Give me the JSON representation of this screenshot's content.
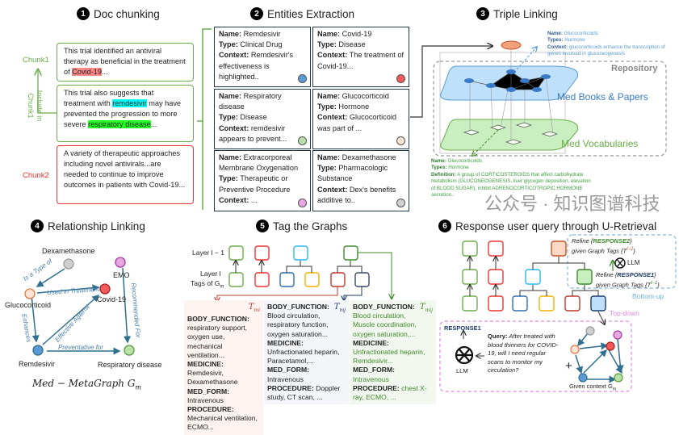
{
  "section1": {
    "num": "1",
    "title": "Doc chunking",
    "chunk1_label": "Chunk1",
    "chunk2_label": "Chunk2",
    "include_label": "Include in Chunk1",
    "chunk1a": {
      "pre": "This trial identified an antiviral therapy as beneficial in the treatment of ",
      "hl": "Covid-19",
      "post": "..."
    },
    "chunk1b": {
      "pre": "This trial also suggests that treatment with ",
      "hl1": "remdesivir",
      "mid": " may have prevented the progression to more severe ",
      "hl2": "respiratory disease",
      "post": "..."
    },
    "chunk2": "A variety of therapeutic approaches including novel antivirals...are needed to continue to improve outcomes in patients with Covid-19..."
  },
  "section2": {
    "num": "2",
    "title": "Entities Extraction",
    "k_name": "Name:",
    "k_type": "Type:",
    "k_context": "Context:",
    "entities": [
      {
        "name": "Remdesivir",
        "type": "Clinical Drug",
        "context": "Remdesivir's effectiveness is highlighted..",
        "color": "#5b9bd5"
      },
      {
        "name": "Covid-19",
        "type": "Disease",
        "context": "The treatment of Covid-19...",
        "color": "#f05a5a"
      },
      {
        "name": "Respiratory disease",
        "type": "Disease",
        "context": "remdesivir appears to prevent...",
        "color": "#b8e0a8"
      },
      {
        "name": "Glucocorticoid",
        "type": "Hormone",
        "context": "Glucocorticoid was part of ...",
        "color": "#fde3d3"
      },
      {
        "name": "Extracorporeal Membrane Oxygenation",
        "type": "Therapeutic or Preventive Procedure",
        "context": "...",
        "color": "#e8a6e0"
      },
      {
        "name": "Dexamethasone",
        "type": "Pharmacologic Substance",
        "context": "Dex's benefits additive to..",
        "color": "#cfcfcf"
      }
    ]
  },
  "section3": {
    "num": "3",
    "title": "Triple Linking",
    "repository": "Repository",
    "books": "Med Books & Papers",
    "vocab": "Med Vocabularies",
    "top_info": {
      "k_name": "Name:",
      "name": "Glucocorticoids",
      "k_types": "Types:",
      "types": "Hormone",
      "k_context": "Context:",
      "context": "glucocorticoids enhance the transcription of genes involved in gluconeogenesis"
    },
    "bottom_info": {
      "k_name": "Name:",
      "name": "Glucocorticoids",
      "k_types": "Types:",
      "types": "Hormone",
      "k_def": "Definition:",
      "definition": "A group of CORTICOSTEROIDS that affect carbohydrate metabolism (GLUCONEOGENESIS, liver glycogen deposition, elevation of BLOOD SUGAR), inhibit ADRENOCORTICOTROPIC HORMONE secretion.."
    }
  },
  "section4": {
    "num": "4",
    "title": "Relationship Linking",
    "caption": "Med − MetaGraph G",
    "nodes": {
      "dex": "Dexamethasone",
      "emo": "EMO",
      "gluco": "Glucocorticoid",
      "covid": "Covid-19",
      "remd": "Remdesivir",
      "resp": "Respiratory disease"
    },
    "edges": {
      "is_type": "Is a Type of",
      "used": "Used in Treatment",
      "enhances": "Enhances",
      "effective": "Effective Against",
      "recommended": "Recommended For",
      "preventative": "Preventative for"
    }
  },
  "section5": {
    "num": "5",
    "title": "Tag the Graphs",
    "layer_prev": "Layer l − 1",
    "layer": "Layer l",
    "tags_of": "Tags of G",
    "panels": [
      {
        "tag": "T",
        "sub": "mi",
        "color": "#c0392b",
        "bg": "#fdf3f0",
        "rows": [
          [
            "BODY_FUNCTION:",
            "respiratory support, oxygen use, mechanical ventilation..."
          ],
          [
            "MEDICINE:",
            "Remdesivir, Dexamethasone"
          ],
          [
            "MED_FORM:",
            "Intravenous"
          ],
          [
            "PROCEDURE:",
            "Mechanical ventilation, ECMO..."
          ]
        ]
      },
      {
        "tag": "T",
        "sub": "mj",
        "color": "#1f3a6e",
        "bg": "#f3f5f8",
        "rows": [
          [
            "BODY_FUNCTION:",
            "Blood circulation, respiratory function, oxygen saturation..."
          ],
          [
            "MEDICINE:",
            "Unfractionated heparin, Paracetamol,..."
          ],
          [
            "MED_FORM:",
            "Intravenous"
          ],
          [
            "PROCEDURE:",
            "Doppler study, CT scan, ..."
          ]
        ]
      },
      {
        "tag": "T",
        "sub": "mij",
        "color": "#3f8a2a",
        "bg": "#f2f8ef",
        "rows": [
          [
            "BODY_FUNCTION:",
            "Blood circulation, Muscle coordination, oxygen saturation,..."
          ],
          [
            "MEDICINE:",
            "Unfractionated heparin, Remdesivir..."
          ],
          [
            "MED_FORM:",
            "Intravenous"
          ],
          [
            "PROCEDURE:",
            "chest X-ray, ECMO, ..."
          ]
        ]
      }
    ]
  },
  "section6": {
    "num": "6",
    "title": "Response user query through U-Retrieval",
    "refine2": {
      "a": "Refine {",
      "r": "RESPONSE2",
      "b": "}",
      "c": "given Graph Tags {T",
      "sup": "l−2",
      "d": "}"
    },
    "refine1": {
      "a": "Refine {",
      "r": "RESPONSE1",
      "b": "}",
      "c": "given Graph Tags {T",
      "sup": "l−1",
      "d": "}"
    },
    "llm": "LLM",
    "bottom_up": "Bottom-up",
    "top_down": "Top-down",
    "response1": "RESPONSE1",
    "query_label": "Query:",
    "query": "After treated with blood thinners for COVID-19, will I need regular scans to monitor my circulation?",
    "plus": "+",
    "given_context": "Given context G"
  },
  "watermark": "公众号 · 知识图谱科技"
}
